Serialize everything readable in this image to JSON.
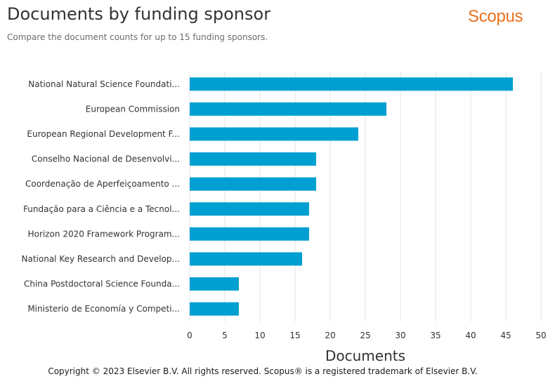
{
  "header": {
    "title": "Documents by funding sponsor",
    "subtitle": "Compare the document counts for up to 15 funding sponsors.",
    "logo_text": "Scopus"
  },
  "footer": {
    "copyright": "Copyright © 2023 Elsevier B.V. All rights reserved. Scopus® is a registered trademark of Elsevier B.V."
  },
  "colors": {
    "bar": "#009fd1",
    "grid": "#e3e3e3",
    "logo": "#e9711c"
  },
  "chart_data": {
    "type": "bar",
    "orientation": "horizontal",
    "categories": [
      "National Natural Science Foundati...",
      "European Commission",
      "European Regional Development F...",
      "Conselho Nacional de Desenvolvi...",
      "Coordenação de Aperfeiçoamento ...",
      "Fundação para a Ciência e a Tecnol...",
      "Horizon 2020 Framework Program...",
      "National Key Research and Develop...",
      "China Postdoctoral Science Founda...",
      "Ministerio de Economía y Competi..."
    ],
    "values": [
      46,
      28,
      24,
      18,
      18,
      17,
      17,
      16,
      7,
      7
    ],
    "xlabel": "Documents",
    "xlim": [
      0,
      50
    ],
    "xticks": [
      0,
      5,
      10,
      15,
      20,
      25,
      30,
      35,
      40,
      45,
      50
    ],
    "grid": true,
    "legend": "none"
  }
}
